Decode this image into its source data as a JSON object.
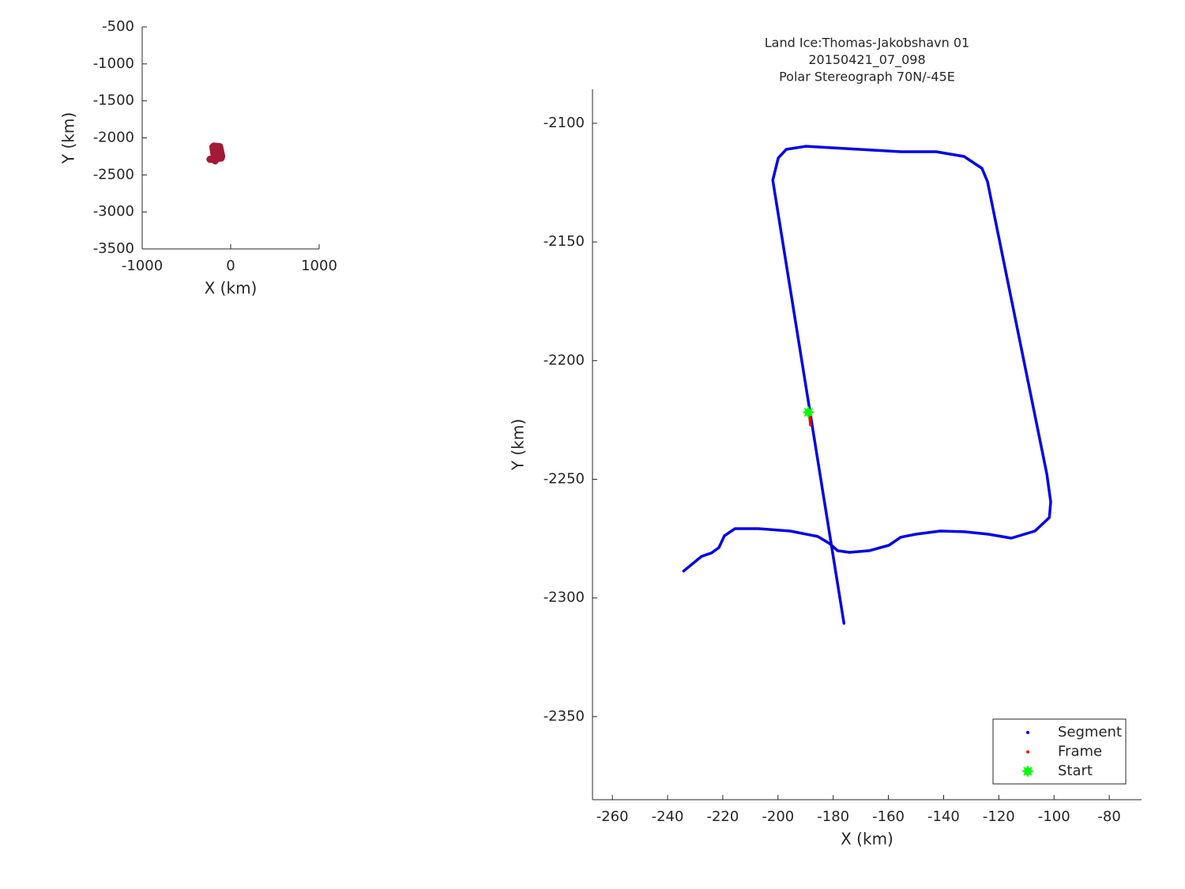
{
  "chart_data": [
    {
      "type": "line",
      "xlabel": "X (km)",
      "ylabel": "Y (km)",
      "xlim": [
        -1000,
        1000
      ],
      "ylim": [
        -3500,
        -500
      ],
      "xticks": [
        -1000,
        0,
        1000
      ],
      "yticks": [
        -500,
        -1000,
        -1500,
        -2000,
        -2500,
        -3000,
        -3500
      ],
      "series": [
        {
          "color": "#a21a35",
          "x": [
            -176,
            -202,
            -190,
            -125,
            -102,
            -107,
            -175,
            -234
          ],
          "y": [
            -2311,
            -2124,
            -2110,
            -2119,
            -2248,
            -2272,
            -2281,
            -2289
          ]
        }
      ]
    },
    {
      "type": "line",
      "title": [
        "Land Ice:Thomas-Jakobshavn 01",
        "20150421_07_098",
        "Polar Stereograph 70N/-45E"
      ],
      "xlabel": "X (km)",
      "ylabel": "Y (km)",
      "xlim": [
        -267.2,
        -68.3
      ],
      "ylim": [
        -2385,
        -2085.7
      ],
      "xticks": [
        -260,
        -240,
        -220,
        -200,
        -180,
        -160,
        -140,
        -120,
        -100,
        -80
      ],
      "yticks": [
        -2100,
        -2150,
        -2200,
        -2250,
        -2300,
        -2350
      ],
      "legend": "lower right",
      "series": [
        {
          "name": "Segment",
          "color": "#0000e6",
          "marker": "dot",
          "x": [
            -176.1,
            -201.9,
            -199.9,
            -197.0,
            -189.9,
            -155.5,
            -142.7,
            -132.6,
            -126.1,
            -124.1,
            -102.6,
            -101.2,
            -101.7,
            -106.9,
            -115.5,
            -124.1,
            -132.6,
            -141.2,
            -149.8,
            -155.5,
            -159.8,
            -167.0,
            -174.1,
            -178.4,
            -181.3,
            -185.6,
            -195.6,
            -207.1,
            -215.6,
            -219.4,
            -221.4,
            -224.2,
            -227.7,
            -234.2
          ],
          "y": [
            -2310.7,
            -2124.0,
            -2114.6,
            -2111.0,
            -2109.7,
            -2112.0,
            -2112.0,
            -2114.0,
            -2119.0,
            -2124.6,
            -2247.8,
            -2259.5,
            -2266.1,
            -2271.8,
            -2274.8,
            -2273.1,
            -2272.1,
            -2271.8,
            -2273.1,
            -2274.4,
            -2277.8,
            -2280.1,
            -2280.8,
            -2280.1,
            -2277.1,
            -2274.1,
            -2271.8,
            -2270.8,
            -2270.8,
            -2273.8,
            -2278.8,
            -2281.1,
            -2282.5,
            -2288.7
          ]
        },
        {
          "name": "Frame",
          "color": "#ff0000",
          "marker": "dot",
          "x": [
            -188.7,
            -188.2
          ],
          "y": [
            -2221.8,
            -2227.2
          ]
        },
        {
          "name": "Start",
          "color": "#00ff00",
          "marker": "star",
          "x": [
            -189.0
          ],
          "y": [
            -2221.8
          ]
        }
      ]
    }
  ]
}
